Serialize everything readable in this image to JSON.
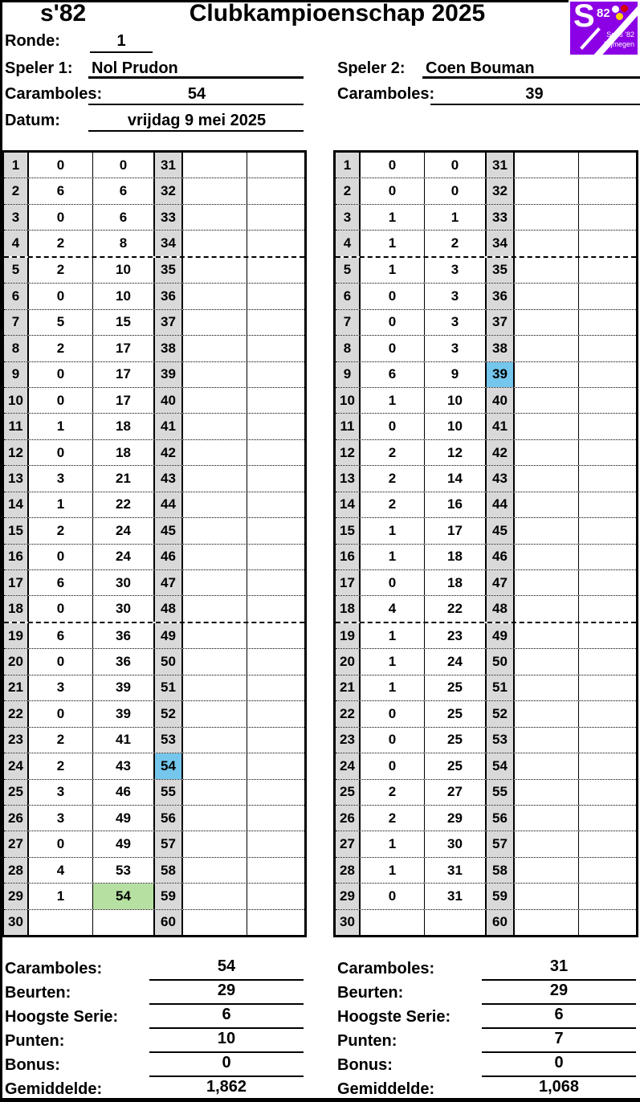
{
  "header": {
    "club": "s'82",
    "title": "Clubkampioenschap 2025",
    "ronde_label": "Ronde:",
    "ronde": "1",
    "speler1_label": "Speler 1:",
    "speler1": "Nol Prudon",
    "speler2_label": "Speler 2:",
    "speler2": "Coen Bouman",
    "caramboles_label": "Caramboles:",
    "caramboles1": "54",
    "caramboles2": "39",
    "datum_label": "Datum:",
    "datum": "vrijdag 9 mei 2025"
  },
  "logo": {
    "letter": "S",
    "number": "82",
    "line1": "Soos '82",
    "line2": "Nijmegen",
    "bg": "#8c00e6"
  },
  "colors": {
    "grid_gray": "#d9d9d9",
    "highlight_blue": "#74c6ec",
    "highlight_green": "#b5e0a2",
    "logo_purple": "#8c00e6"
  },
  "tables": [
    {
      "player": "Nol Prudon",
      "thick_after": [
        4,
        18
      ],
      "highlight_green_cum_row": 29,
      "highlight_blue_n2": 54,
      "rows": [
        [
          1,
          "0",
          "0",
          31
        ],
        [
          2,
          "6",
          "6",
          32
        ],
        [
          3,
          "0",
          "6",
          33
        ],
        [
          4,
          "2",
          "8",
          34
        ],
        [
          5,
          "2",
          "10",
          35
        ],
        [
          6,
          "0",
          "10",
          36
        ],
        [
          7,
          "5",
          "15",
          37
        ],
        [
          8,
          "2",
          "17",
          38
        ],
        [
          9,
          "0",
          "17",
          39
        ],
        [
          10,
          "0",
          "17",
          40
        ],
        [
          11,
          "1",
          "18",
          41
        ],
        [
          12,
          "0",
          "18",
          42
        ],
        [
          13,
          "3",
          "21",
          43
        ],
        [
          14,
          "1",
          "22",
          44
        ],
        [
          15,
          "2",
          "24",
          45
        ],
        [
          16,
          "0",
          "24",
          46
        ],
        [
          17,
          "6",
          "30",
          47
        ],
        [
          18,
          "0",
          "30",
          48
        ],
        [
          19,
          "6",
          "36",
          49
        ],
        [
          20,
          "0",
          "36",
          50
        ],
        [
          21,
          "3",
          "39",
          51
        ],
        [
          22,
          "0",
          "39",
          52
        ],
        [
          23,
          "2",
          "41",
          53
        ],
        [
          24,
          "2",
          "43",
          54
        ],
        [
          25,
          "3",
          "46",
          55
        ],
        [
          26,
          "3",
          "49",
          56
        ],
        [
          27,
          "0",
          "49",
          57
        ],
        [
          28,
          "4",
          "53",
          58
        ],
        [
          29,
          "1",
          "54",
          59
        ],
        [
          30,
          "",
          "",
          60
        ]
      ]
    },
    {
      "player": "Coen Bouman",
      "thick_after": [
        4,
        18
      ],
      "highlight_green_cum_row": null,
      "highlight_blue_n2": 39,
      "rows": [
        [
          1,
          "0",
          "0",
          31
        ],
        [
          2,
          "0",
          "0",
          32
        ],
        [
          3,
          "1",
          "1",
          33
        ],
        [
          4,
          "1",
          "2",
          34
        ],
        [
          5,
          "1",
          "3",
          35
        ],
        [
          6,
          "0",
          "3",
          36
        ],
        [
          7,
          "0",
          "3",
          37
        ],
        [
          8,
          "0",
          "3",
          38
        ],
        [
          9,
          "6",
          "9",
          39
        ],
        [
          10,
          "1",
          "10",
          40
        ],
        [
          11,
          "0",
          "10",
          41
        ],
        [
          12,
          "2",
          "12",
          42
        ],
        [
          13,
          "2",
          "14",
          43
        ],
        [
          14,
          "2",
          "16",
          44
        ],
        [
          15,
          "1",
          "17",
          45
        ],
        [
          16,
          "1",
          "18",
          46
        ],
        [
          17,
          "0",
          "18",
          47
        ],
        [
          18,
          "4",
          "22",
          48
        ],
        [
          19,
          "1",
          "23",
          49
        ],
        [
          20,
          "1",
          "24",
          50
        ],
        [
          21,
          "1",
          "25",
          51
        ],
        [
          22,
          "0",
          "25",
          52
        ],
        [
          23,
          "0",
          "25",
          53
        ],
        [
          24,
          "0",
          "25",
          54
        ],
        [
          25,
          "2",
          "27",
          55
        ],
        [
          26,
          "2",
          "29",
          56
        ],
        [
          27,
          "1",
          "30",
          57
        ],
        [
          28,
          "1",
          "31",
          58
        ],
        [
          29,
          "0",
          "31",
          59
        ],
        [
          30,
          "",
          "",
          60
        ]
      ]
    }
  ],
  "summaries": [
    {
      "rows": [
        {
          "label": "Caramboles:",
          "value": "54"
        },
        {
          "label": "Beurten:",
          "value": "29"
        },
        {
          "label": "Hoogste Serie:",
          "value": "6"
        },
        {
          "label": "Punten:",
          "value": "10"
        },
        {
          "label": "Bonus:",
          "value": "0"
        },
        {
          "label": "Gemiddelde:",
          "value": "1,862"
        }
      ]
    },
    {
      "rows": [
        {
          "label": "Caramboles:",
          "value": "31"
        },
        {
          "label": "Beurten:",
          "value": "29"
        },
        {
          "label": "Hoogste Serie:",
          "value": "6"
        },
        {
          "label": "Punten:",
          "value": "7"
        },
        {
          "label": "Bonus:",
          "value": "0"
        },
        {
          "label": "Gemiddelde:",
          "value": "1,068"
        }
      ]
    }
  ]
}
